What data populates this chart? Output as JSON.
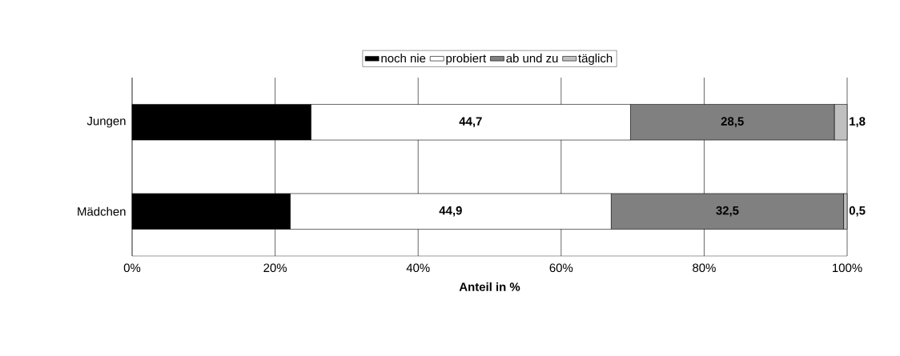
{
  "chart_data": {
    "type": "bar",
    "orientation": "horizontal",
    "stacked": true,
    "xlabel": "Anteil in %",
    "categories": [
      "Jungen",
      "Mädchen"
    ],
    "series": [
      {
        "name": "noch nie",
        "color": "#000000",
        "values": [
          25.0,
          22.1
        ],
        "value_labels": [
          null,
          null
        ]
      },
      {
        "name": "probiert",
        "color": "#ffffff",
        "values": [
          44.7,
          44.9
        ],
        "value_labels": [
          "44,7",
          "44,9"
        ]
      },
      {
        "name": "ab und zu",
        "color": "#808080",
        "values": [
          28.5,
          32.5
        ],
        "value_labels": [
          "28,5",
          "32,5"
        ]
      },
      {
        "name": "täglich",
        "color": "#c0c0c0",
        "values": [
          1.8,
          0.5
        ],
        "value_labels": [
          "1,8",
          "0,5"
        ]
      }
    ],
    "xlim": [
      0,
      100
    ],
    "xticks": [
      {
        "value": 0,
        "label": "0%"
      },
      {
        "value": 20,
        "label": "20%"
      },
      {
        "value": 40,
        "label": "40%"
      },
      {
        "value": 60,
        "label": "60%"
      },
      {
        "value": 80,
        "label": "80%"
      },
      {
        "value": 100,
        "label": "100%"
      }
    ],
    "grid": "x",
    "legend": "top"
  }
}
